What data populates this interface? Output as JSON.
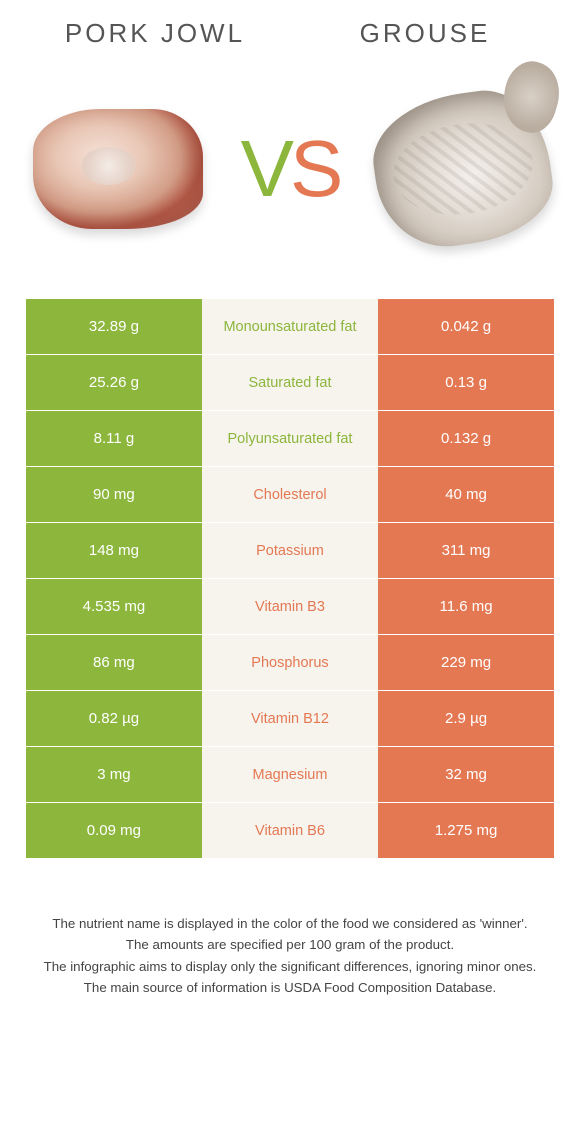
{
  "header": {
    "left": "PORK JOWL",
    "right": "GROUSE"
  },
  "vs": {
    "v": "V",
    "s": "S"
  },
  "colors": {
    "green": "#8cb63c",
    "orange": "#e47853",
    "mid_bg": "#f7f4ee",
    "text_white": "#ffffff"
  },
  "rows": [
    {
      "left": "32.89 g",
      "label": "Monounsaturated fat",
      "right": "0.042 g",
      "winner": "left"
    },
    {
      "left": "25.26 g",
      "label": "Saturated fat",
      "right": "0.13 g",
      "winner": "left"
    },
    {
      "left": "8.11 g",
      "label": "Polyunsaturated fat",
      "right": "0.132 g",
      "winner": "left"
    },
    {
      "left": "90 mg",
      "label": "Cholesterol",
      "right": "40 mg",
      "winner": "right"
    },
    {
      "left": "148 mg",
      "label": "Potassium",
      "right": "311 mg",
      "winner": "right"
    },
    {
      "left": "4.535 mg",
      "label": "Vitamin B3",
      "right": "11.6 mg",
      "winner": "right"
    },
    {
      "left": "86 mg",
      "label": "Phosphorus",
      "right": "229 mg",
      "winner": "right"
    },
    {
      "left": "0.82 µg",
      "label": "Vitamin B12",
      "right": "2.9 µg",
      "winner": "right"
    },
    {
      "left": "3 mg",
      "label": "Magnesium",
      "right": "32 mg",
      "winner": "right"
    },
    {
      "left": "0.09 mg",
      "label": "Vitamin B6",
      "right": "1.275 mg",
      "winner": "right"
    }
  ],
  "footer": {
    "l1": "The nutrient name is displayed in the color of the food we considered as 'winner'.",
    "l2": "The amounts are specified per 100 gram of the product.",
    "l3": "The infographic aims to display only the significant differences, ignoring minor ones.",
    "l4": "The main source of information is USDA Food Composition Database."
  }
}
